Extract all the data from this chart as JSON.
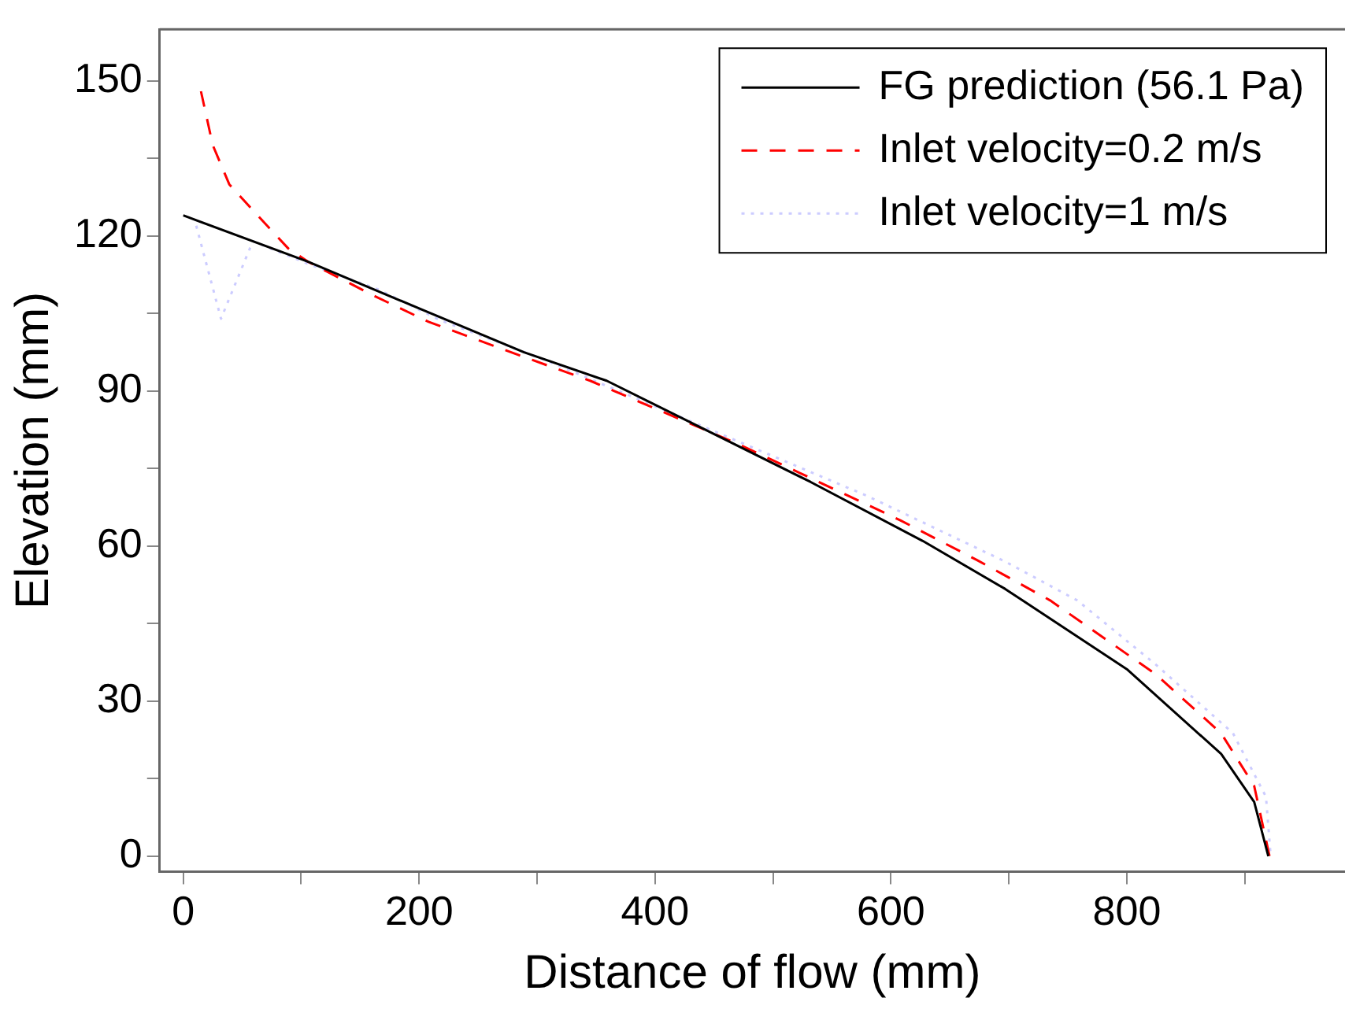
{
  "chart_data": {
    "type": "line",
    "xlabel": "Distance of flow (mm)",
    "ylabel": "Elevation (mm)",
    "xlim": [
      -20,
      985
    ],
    "ylim": [
      -3,
      160
    ],
    "xticks": [
      0,
      {
        "value": 100,
        "label": null
      },
      200,
      {
        "value": 300,
        "label": null
      },
      400,
      {
        "value": 500,
        "label": null
      },
      600,
      {
        "value": 700,
        "label": null
      },
      800,
      {
        "value": 900,
        "label": null
      }
    ],
    "yticks": [
      0,
      {
        "value": 15,
        "label": null
      },
      30,
      {
        "value": 45,
        "label": null
      },
      60,
      {
        "value": 75,
        "label": null
      },
      90,
      {
        "value": 105,
        "label": null
      },
      120,
      {
        "value": 135,
        "label": null
      },
      150
    ],
    "grid": false,
    "legend": "top right",
    "marker": "none",
    "series": [
      {
        "name": "FG prediction (56.1 Pa)",
        "color": "#000000",
        "line_style": "solid",
        "x": [
          0,
          106,
          204,
          289,
          359,
          532,
          627,
          697,
          800,
          880,
          908,
          920
        ],
        "values": [
          124,
          115,
          105.6,
          97.5,
          92,
          72.4,
          61,
          51.7,
          36.2,
          19.8,
          10.5,
          0
        ]
      },
      {
        "name": "Inlet velocity=0.2 m/s",
        "color": "#ff0000",
        "line_style": "dashed",
        "x": [
          15,
          25,
          39,
          63,
          89,
          106,
          162,
          208,
          284,
          345,
          472,
          608,
          673,
          735,
          824,
          880,
          908,
          921
        ],
        "values": [
          148,
          137.6,
          130,
          124,
          117.6,
          115,
          108.4,
          103.4,
          97,
          92,
          79.6,
          65,
          57.3,
          49.5,
          35.3,
          23.8,
          13.6,
          0
        ]
      },
      {
        "name": "Inlet velocity=1 m/s",
        "color": "#ccccff",
        "line_style": "dotted",
        "x": [
          11,
          32,
          59,
          106,
          166,
          218,
          307,
          439,
          580,
          697,
          758,
          824,
          890,
          918,
          922
        ],
        "values": [
          122,
          104,
          119,
          114.6,
          109.6,
          103.7,
          96,
          83.3,
          69.7,
          57,
          49.5,
          37.2,
          23.8,
          11.5,
          0
        ]
      }
    ]
  }
}
